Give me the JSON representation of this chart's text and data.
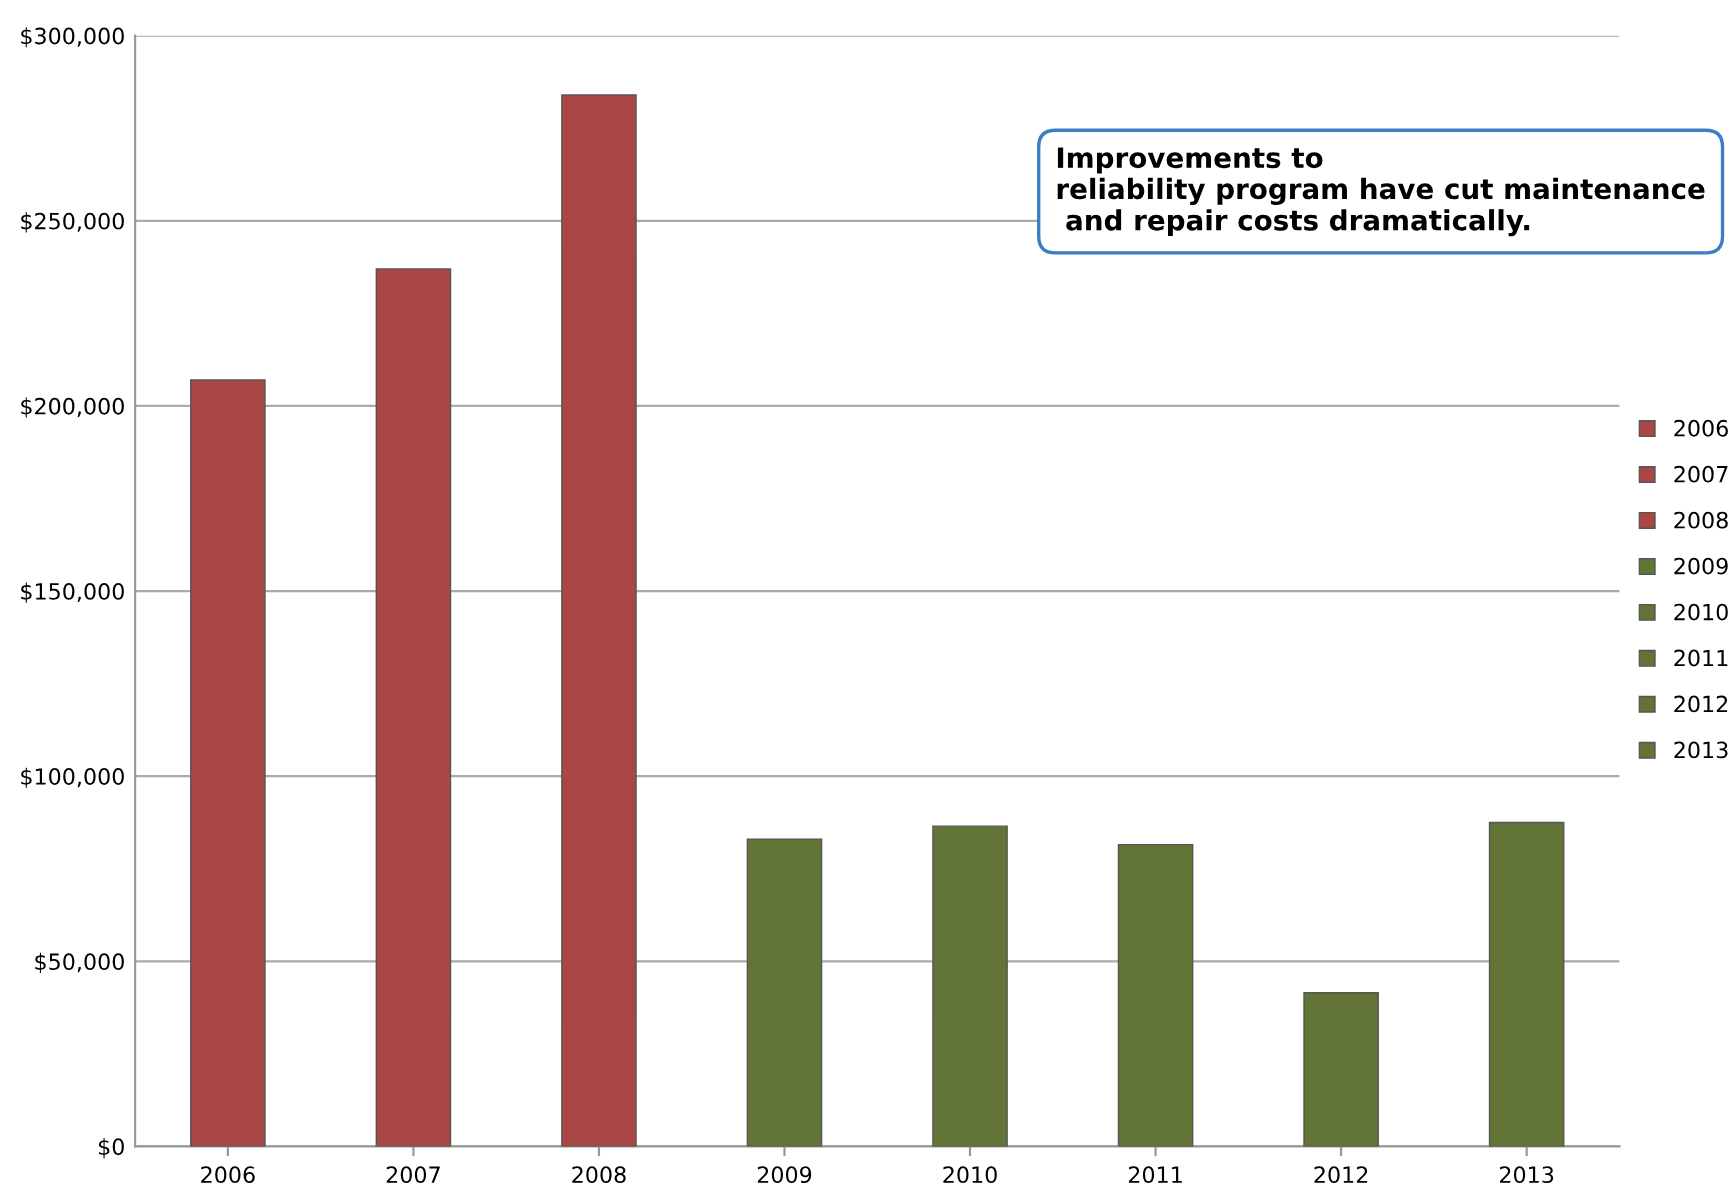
{
  "chart_data": {
    "type": "bar",
    "categories": [
      "2006",
      "2007",
      "2008",
      "2009",
      "2010",
      "2011",
      "2012",
      "2013"
    ],
    "series": [
      {
        "name": "2006",
        "color": "#a84744",
        "values": [
          207000,
          null,
          null,
          null,
          null,
          null,
          null,
          null
        ]
      },
      {
        "name": "2007",
        "color": "#a84744",
        "values": [
          null,
          237000,
          null,
          null,
          null,
          null,
          null,
          null
        ]
      },
      {
        "name": "2008",
        "color": "#a84744",
        "values": [
          null,
          null,
          284000,
          null,
          null,
          null,
          null,
          null
        ]
      },
      {
        "name": "2009",
        "color": "#627436",
        "values": [
          null,
          null,
          null,
          83000,
          null,
          null,
          null,
          null
        ]
      },
      {
        "name": "2010",
        "color": "#627436",
        "values": [
          null,
          null,
          null,
          null,
          86500,
          null,
          null,
          null
        ]
      },
      {
        "name": "2011",
        "color": "#627436",
        "values": [
          null,
          null,
          null,
          null,
          null,
          81500,
          null,
          null
        ]
      },
      {
        "name": "2012",
        "color": "#627436",
        "values": [
          null,
          null,
          null,
          null,
          null,
          null,
          41500,
          null
        ]
      },
      {
        "name": "2013",
        "color": "#627436",
        "values": [
          null,
          null,
          null,
          null,
          null,
          null,
          null,
          87500
        ]
      }
    ],
    "ylim": [
      0,
      300000
    ],
    "yticks": [
      {
        "value": 0,
        "label": "$0"
      },
      {
        "value": 50000,
        "label": "$50,000"
      },
      {
        "value": 100000,
        "label": "$100,000"
      },
      {
        "value": 150000,
        "label": "$150,000"
      },
      {
        "value": 200000,
        "label": "$200,000"
      },
      {
        "value": 250000,
        "label": "$250,000"
      },
      {
        "value": 300000,
        "label": "$300,000"
      }
    ],
    "grid": "y",
    "legend": "right",
    "annotations": [
      "Improvements to\nreliability program have cut maintenance\n and repair costs dramatically."
    ]
  }
}
